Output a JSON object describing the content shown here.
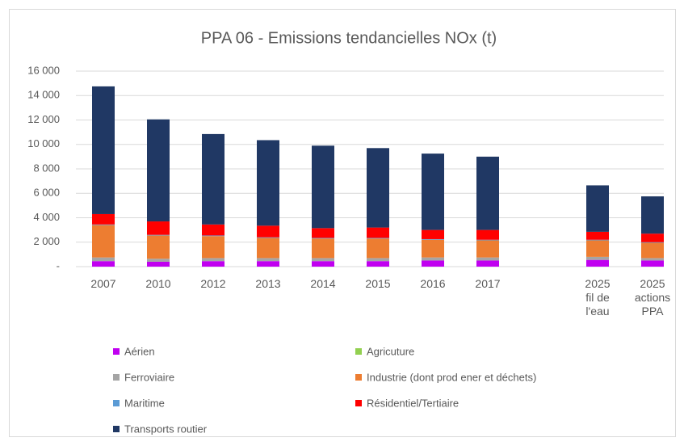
{
  "chart_data": {
    "type": "stacked_bar",
    "title": "PPA 06 - Emissions tendancielles NOx (t)",
    "categories": [
      "2007",
      "2010",
      "2012",
      "2013",
      "2014",
      "2015",
      "2016",
      "2017",
      null,
      "2025\nfil de\nl'eau",
      "2025\nactions\nPPA"
    ],
    "series": [
      {
        "name": "Aérien",
        "color": "#c000f0",
        "values": [
          450,
          400,
          450,
          450,
          450,
          450,
          500,
          500,
          null,
          550,
          500
        ]
      },
      {
        "name": "Agricuture",
        "color": "#92d050",
        "values": [
          0,
          0,
          0,
          0,
          0,
          0,
          0,
          0,
          null,
          0,
          0
        ]
      },
      {
        "name": "Ferroviaire",
        "color": "#a5a5a5",
        "values": [
          300,
          250,
          250,
          250,
          250,
          250,
          250,
          250,
          null,
          250,
          200
        ]
      },
      {
        "name": "Industrie (dont prod  ener et déchets)",
        "color": "#ed7d31",
        "values": [
          2650,
          1900,
          1800,
          1650,
          1600,
          1600,
          1450,
          1400,
          null,
          1350,
          1250
        ]
      },
      {
        "name": "Maritime",
        "color": "#5b9bd5",
        "values": [
          50,
          50,
          50,
          50,
          50,
          50,
          50,
          50,
          null,
          50,
          50
        ]
      },
      {
        "name": "Résidentiel/Tertiaire",
        "color": "#ff0000",
        "values": [
          850,
          1100,
          900,
          950,
          800,
          850,
          750,
          800,
          null,
          650,
          700
        ]
      },
      {
        "name": "Transports routier",
        "color": "#203864",
        "values": [
          10450,
          8350,
          7400,
          7000,
          6750,
          6500,
          6250,
          6000,
          null,
          3800,
          3050
        ]
      }
    ],
    "ylim": [
      0,
      16000
    ],
    "yticks": [
      {
        "value": 0,
        "label": "-"
      },
      {
        "value": 2000,
        "label": "2 000"
      },
      {
        "value": 4000,
        "label": "4 000"
      },
      {
        "value": 6000,
        "label": "6 000"
      },
      {
        "value": 8000,
        "label": "8 000"
      },
      {
        "value": 10000,
        "label": "10 000"
      },
      {
        "value": 12000,
        "label": "12 000"
      },
      {
        "value": 14000,
        "label": "14 000"
      },
      {
        "value": 16000,
        "label": "16 000"
      }
    ],
    "grid": true
  }
}
